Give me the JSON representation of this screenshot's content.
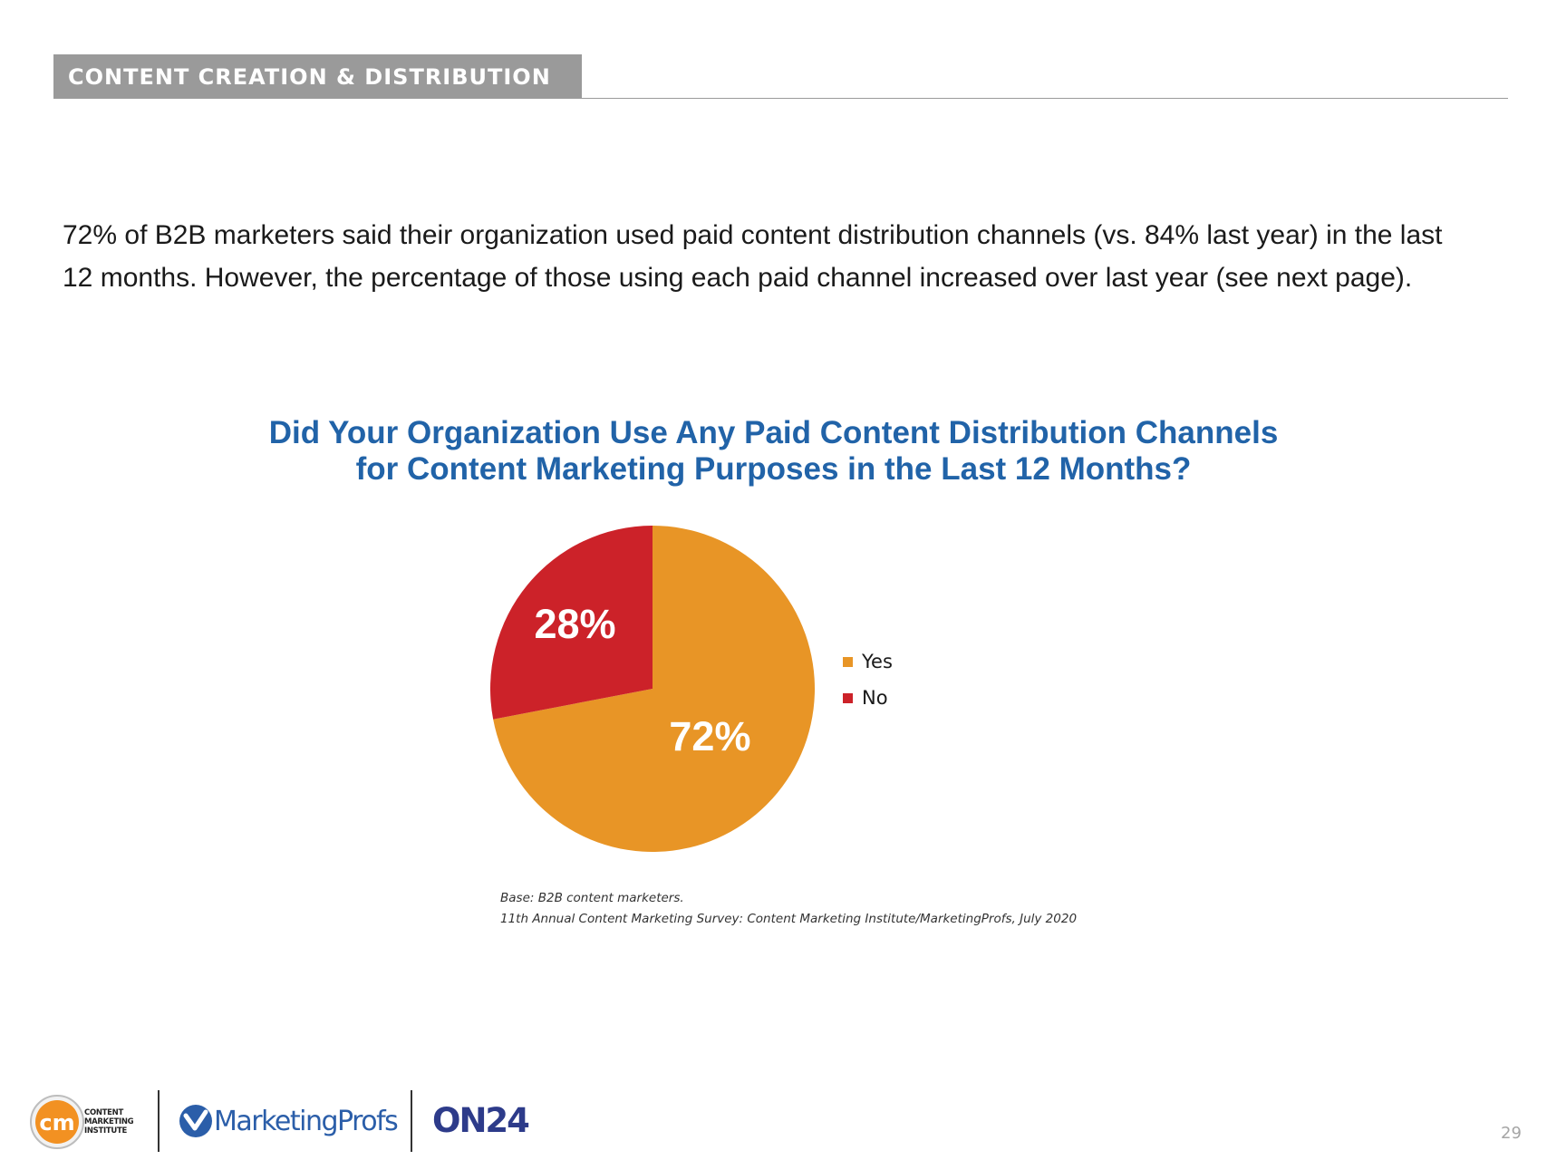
{
  "header": {
    "section_title": "CONTENT CREATION & DISTRIBUTION"
  },
  "intro": {
    "line1": "72% of B2B marketers said their organization used paid content distribution channels (vs. 84% last year) in the last",
    "line2": "12 months. However, the percentage of those using each paid channel increased over last year (see next page)."
  },
  "chart_data": {
    "type": "pie",
    "title": "Did Your Organization Use Any Paid Content Distribution Channels for Content Marketing Purposes in the Last 12 Months?",
    "title_lines": [
      "Did Your Organization Use Any Paid Content Distribution Channels",
      "for Content Marketing Purposes in the Last 12 Months?"
    ],
    "categories": [
      "Yes",
      "No"
    ],
    "values": [
      72,
      28
    ],
    "data_labels": [
      "72%",
      "28%"
    ],
    "colors": [
      "#e89526",
      "#cc2229"
    ],
    "legend_position": "right"
  },
  "notes": {
    "base": "Base: B2B content marketers.",
    "source": "11th Annual Content Marketing Survey: Content Marketing Institute/MarketingProfs, July 2020"
  },
  "footer": {
    "cmi_initials": "cm",
    "cmi_lines": [
      "CONTENT",
      "MARKETING",
      "INSTITUTE"
    ],
    "marketingprofs": "MarketingProfs",
    "on24": "ON24"
  },
  "page_number": "29"
}
